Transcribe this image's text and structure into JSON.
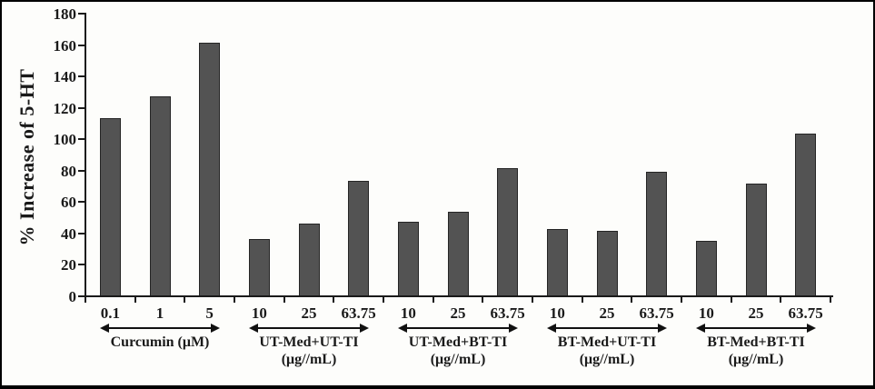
{
  "figure": {
    "background_color": "#fdfdfb",
    "border_color": "#000000"
  },
  "chart_data": {
    "type": "bar",
    "title": "",
    "ylabel": "% Increase of 5-HT",
    "xlabel": "",
    "ylim": [
      0,
      180
    ],
    "ytick_interval": 20,
    "yticks": [
      180,
      160,
      140,
      120,
      100,
      80,
      60,
      40,
      20,
      0
    ],
    "grid": false,
    "legend": null,
    "bar_color": "#535353",
    "bar_border_color": "#252525",
    "groups": [
      {
        "label": "Curcumin (μM)",
        "unit_line": "",
        "categories": [
          "0.1",
          "1",
          "5"
        ],
        "values": [
          113,
          127,
          161
        ]
      },
      {
        "label": "UT-Med+UT-TI",
        "unit_line": "(μg//mL)",
        "categories": [
          "10",
          "25",
          "63.75"
        ],
        "values": [
          36,
          46,
          73
        ]
      },
      {
        "label": "UT-Med+BT-TI",
        "unit_line": "(μg//mL)",
        "categories": [
          "10",
          "25",
          "63.75"
        ],
        "values": [
          47,
          53,
          81
        ]
      },
      {
        "label": "BT-Med+UT-TI",
        "unit_line": "(μg//mL)",
        "categories": [
          "10",
          "25",
          "63.75"
        ],
        "values": [
          42,
          41,
          79
        ]
      },
      {
        "label": "BT-Med+BT-TI",
        "unit_line": "(μg//mL)",
        "categories": [
          "10",
          "25",
          "63.75"
        ],
        "values": [
          35,
          71,
          103
        ]
      }
    ]
  }
}
